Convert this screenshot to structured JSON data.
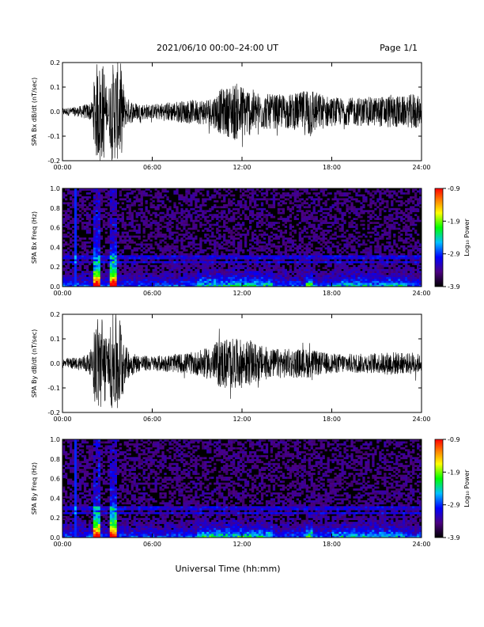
{
  "header": {
    "date_range": "2021/06/10  00:00–24:00 UT",
    "page": "Page 1/1"
  },
  "x_title": "Universal Time (hh:mm)",
  "chart_data": [
    {
      "type": "line",
      "ylabel": "SPA Bx dB/dt (nT/sec)",
      "xlim": [
        0,
        24
      ],
      "ylim": [
        -0.2,
        0.2
      ],
      "x_ticks": [
        "00:00",
        "06:00",
        "12:00",
        "18:00",
        "24:00"
      ],
      "y_ticks": [
        "-0.2",
        "-0.1",
        "0.0",
        "0.1",
        "0.2"
      ],
      "series": [
        {
          "x_hours": [
            0,
            1,
            2,
            2.2,
            2.5,
            2.8,
            3,
            3.3,
            3.6,
            3.9,
            4.2,
            5,
            6,
            7,
            8,
            9,
            10,
            10.5,
            11,
            11.5,
            12,
            12.5,
            13,
            14,
            15,
            16,
            16.5,
            17,
            18,
            19,
            20,
            21,
            22,
            23,
            23.5,
            24
          ],
          "amplitude": [
            0.015,
            0.02,
            0.04,
            0.2,
            0.2,
            0.2,
            0.05,
            0.2,
            0.2,
            0.2,
            0.06,
            0.035,
            0.03,
            0.04,
            0.045,
            0.05,
            0.06,
            0.09,
            0.1,
            0.12,
            0.11,
            0.1,
            0.08,
            0.07,
            0.07,
            0.08,
            0.12,
            0.08,
            0.06,
            0.055,
            0.06,
            0.06,
            0.07,
            0.06,
            0.08,
            0.05
          ]
        }
      ]
    },
    {
      "type": "heatmap",
      "ylabel": "SPA Bx Freq (Hz)",
      "xlim": [
        0,
        24
      ],
      "ylim": [
        0,
        1
      ],
      "x_ticks": [
        "00:00",
        "06:00",
        "12:00",
        "18:00",
        "24:00"
      ],
      "y_ticks": [
        "0.0",
        "0.2",
        "0.4",
        "0.6",
        "0.8",
        "1.0"
      ],
      "colorbar": {
        "label": "Log₁₀ Power",
        "min": -3.9,
        "max": -0.9,
        "ticks": [
          "-0.9",
          "-1.9",
          "-2.9",
          "-3.9"
        ]
      }
    },
    {
      "type": "line",
      "ylabel": "SPA By dB/dt (nT/sec)",
      "xlim": [
        0,
        24
      ],
      "ylim": [
        -0.2,
        0.2
      ],
      "x_ticks": [
        "00:00",
        "06:00",
        "12:00",
        "18:00",
        "24:00"
      ],
      "y_ticks": [
        "-0.2",
        "-0.1",
        "0.0",
        "0.1",
        "0.2"
      ],
      "series": [
        {
          "x_hours": [
            0,
            1,
            2,
            2.2,
            2.5,
            2.8,
            3,
            3.3,
            3.6,
            3.9,
            4.2,
            5,
            6,
            7,
            8,
            9,
            10,
            10.5,
            11,
            11.5,
            12,
            12.5,
            13,
            14,
            15,
            16,
            16.5,
            17,
            18,
            19,
            20,
            21,
            22,
            23,
            23.5,
            24
          ],
          "amplitude": [
            0.02,
            0.025,
            0.05,
            0.2,
            0.2,
            0.2,
            0.06,
            0.2,
            0.2,
            0.2,
            0.07,
            0.035,
            0.03,
            0.035,
            0.04,
            0.05,
            0.07,
            0.1,
            0.11,
            0.1,
            0.1,
            0.09,
            0.08,
            0.06,
            0.06,
            0.06,
            0.06,
            0.05,
            0.04,
            0.04,
            0.04,
            0.04,
            0.05,
            0.04,
            0.05,
            0.03
          ]
        }
      ]
    },
    {
      "type": "heatmap",
      "ylabel": "SPA By Freq (Hz)",
      "xlim": [
        0,
        24
      ],
      "ylim": [
        0,
        1
      ],
      "x_ticks": [
        "00:00",
        "06:00",
        "12:00",
        "18:00",
        "24:00"
      ],
      "y_ticks": [
        "0.0",
        "0.2",
        "0.4",
        "0.6",
        "0.8",
        "1.0"
      ],
      "colorbar": {
        "label": "Log₁₀ Power",
        "min": -3.9,
        "max": -0.9,
        "ticks": [
          "-0.9",
          "-1.9",
          "-2.9",
          "-3.9"
        ]
      }
    }
  ]
}
